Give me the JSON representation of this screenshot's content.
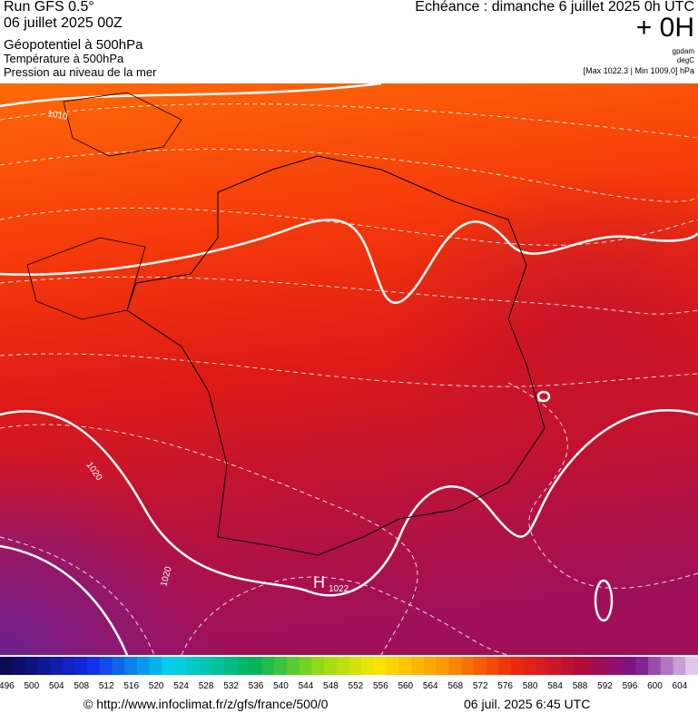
{
  "header": {
    "run": "Run GFS 0.5°",
    "date": "06 juillet 2025 00Z",
    "layer1": "Géopotentiel à 500hPa",
    "layer2": "Température à 500hPa",
    "layer3": "Pression au niveau de la mer",
    "echeance": "Echéance : dimanche 6 juillet 2025 0h UTC",
    "offset": "+ 0H",
    "unit1": "gpdam",
    "unit2": "degC",
    "extremes": "[Max 1022.3 | Min 1009.0] hPa"
  },
  "map": {
    "isobar_labels": [
      "1010",
      "1020",
      "1020"
    ],
    "high_letter": "H",
    "high_value": "1022"
  },
  "colorbar": {
    "labels": [
      "496",
      "500",
      "504",
      "508",
      "512",
      "516",
      "520",
      "524",
      "528",
      "532",
      "536",
      "540",
      "544",
      "548",
      "552",
      "556",
      "560",
      "564",
      "568",
      "572",
      "576",
      "580",
      "584",
      "588",
      "592",
      "596",
      "600",
      "604"
    ]
  },
  "footer": {
    "source": "© http://www.infoclimat.fr/z/gfs/france/500/0",
    "generated": "06 juil. 2025  6:45 UTC"
  }
}
